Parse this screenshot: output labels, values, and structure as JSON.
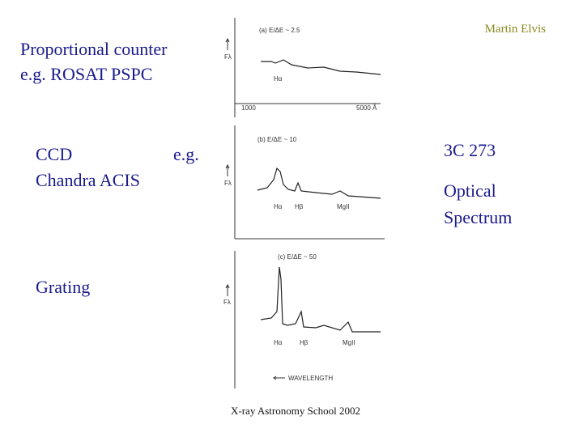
{
  "header": {
    "author": "Martin Elvis"
  },
  "left_labels": {
    "proportional": [
      "Proportional counter",
      "e.g. ROSAT PSPC"
    ],
    "ccd": [
      "CCD",
      "Chandra ACIS"
    ],
    "eg": "e.g.",
    "grating": "Grating"
  },
  "right_labels": {
    "object": "3C 273",
    "description": [
      "Optical",
      "Spectrum"
    ]
  },
  "panels": [
    {
      "label": "(a) E/ΔE ~ 2.5",
      "y_axis": "Fλ",
      "lines": [
        "Hα"
      ],
      "x_ticks": [
        "1000",
        "5000 Å"
      ]
    },
    {
      "label": "(b) E/ΔE ~ 10",
      "y_axis": "Fλ",
      "lines": [
        "Hα",
        "Hβ",
        "MgII"
      ]
    },
    {
      "label": "(c) E/ΔE ~ 50",
      "y_axis": "Fλ",
      "lines": [
        "Hα",
        "Hβ",
        "MgII"
      ],
      "x_axis": "WAVELENGTH"
    }
  ],
  "footer": "X-ray Astronomy School 2002"
}
